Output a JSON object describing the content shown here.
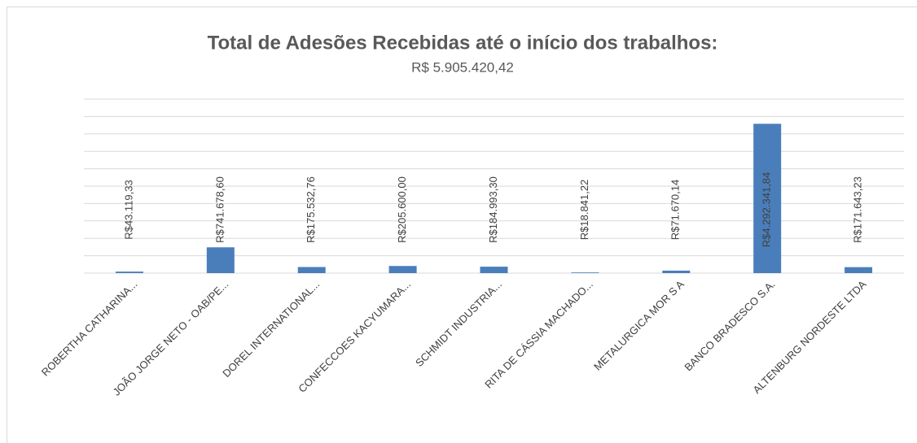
{
  "chart_data": {
    "type": "bar",
    "title": "Total de Adesões Recebidas até o início dos trabalhos:",
    "subtitle": "R$ 5.905.420,42",
    "categories": [
      "ROBERTHA CATHARINA...",
      "JOÃO JORGE NETO - OAB/PE...",
      "DOREL INTERNATIONAL...",
      "CONFECCOES KACYUMARA...",
      "SCHMIDT INDUSTRIA...",
      "RITA DE CÁSSIA MACHADO...",
      "METALURGICA MOR S A",
      "BANCO BRADESCO S.A.",
      "ALTENBURG NORDESTE LTDA"
    ],
    "values": [
      43119.33,
      741678.6,
      175532.76,
      205600.0,
      184993.3,
      18841.22,
      71670.14,
      4292341.84,
      171643.23
    ],
    "value_labels": [
      "R$43.119,33",
      "R$741.678,60",
      "R$175.532,76",
      "R$205.600,00",
      "R$184.993,30",
      "R$18.841,22",
      "R$71.670,14",
      "R$4.292.341,84",
      "R$171.643,23"
    ],
    "color": "#4a7ebb",
    "ylim": [
      0,
      5000000
    ],
    "yticks": [
      0,
      500000,
      1000000,
      1500000,
      2000000,
      2500000,
      3000000,
      3500000,
      4000000,
      4500000,
      5000000
    ],
    "grid": true
  }
}
